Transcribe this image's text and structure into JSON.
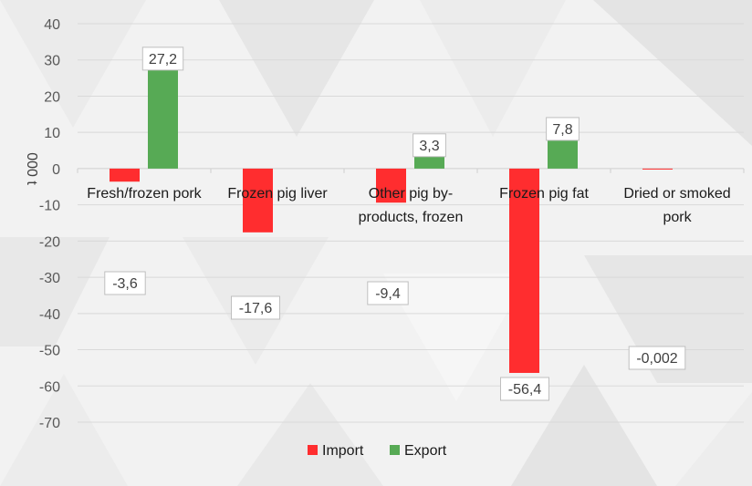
{
  "chart_data": {
    "type": "bar",
    "title": "",
    "xlabel": "",
    "ylabel": "000 t",
    "ylim": [
      -70,
      40
    ],
    "yticks": [
      40,
      30,
      20,
      10,
      0,
      -10,
      -20,
      -30,
      -40,
      -50,
      -60,
      -70
    ],
    "grid": true,
    "legend_position": "bottom",
    "categories": [
      [
        "Fresh/frozen pork"
      ],
      [
        "Frozen pig liver"
      ],
      [
        "Other pig by-",
        "products, frozen"
      ],
      [
        "Frozen pig fat"
      ],
      [
        "Dried or smoked",
        "pork"
      ]
    ],
    "series": [
      {
        "name": "Import",
        "color": "#ff2d2f",
        "values": [
          -3.6,
          -17.6,
          -9.4,
          -56.4,
          -0.002
        ],
        "labels": [
          "-3,6",
          "-17,6",
          "-9,4",
          "-56,4",
          "-0,002"
        ]
      },
      {
        "name": "Export",
        "color": "#57aa55",
        "values": [
          27.2,
          null,
          3.3,
          7.8,
          null
        ],
        "labels": [
          "27,2",
          null,
          "3,3",
          "7,8",
          null
        ]
      }
    ]
  }
}
